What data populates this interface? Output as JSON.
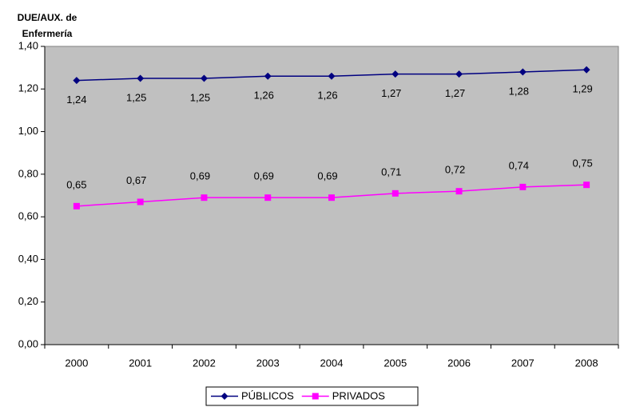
{
  "chart_data": {
    "type": "line",
    "title": "DUE/AUX. de Enfermería",
    "categories": [
      "2000",
      "2001",
      "2002",
      "2003",
      "2004",
      "2005",
      "2006",
      "2007",
      "2008"
    ],
    "series": [
      {
        "name": "PÚBLICOS",
        "color": "#000080",
        "marker": "diamond",
        "values": [
          1.24,
          1.25,
          1.25,
          1.26,
          1.26,
          1.27,
          1.27,
          1.28,
          1.29
        ],
        "value_labels": [
          "1,24",
          "1,25",
          "1,25",
          "1,26",
          "1,26",
          "1,27",
          "1,27",
          "1,28",
          "1,29"
        ]
      },
      {
        "name": "PRIVADOS",
        "color": "#ff00ff",
        "marker": "square",
        "values": [
          0.65,
          0.67,
          0.69,
          0.69,
          0.69,
          0.71,
          0.72,
          0.74,
          0.75
        ],
        "value_labels": [
          "0,65",
          "0,67",
          "0,69",
          "0,69",
          "0,69",
          "0,71",
          "0,72",
          "0,74",
          "0,75"
        ]
      }
    ],
    "ylim": [
      0,
      1.4
    ],
    "yticks": [
      {
        "value": 0,
        "label": "0,00"
      },
      {
        "value": 0.2,
        "label": "0,20"
      },
      {
        "value": 0.4,
        "label": "0,40"
      },
      {
        "value": 0.6,
        "label": "0,60"
      },
      {
        "value": 0.8,
        "label": "0,80"
      },
      {
        "value": 1.0,
        "label": "1,00"
      },
      {
        "value": 1.2,
        "label": "1,20"
      },
      {
        "value": 1.4,
        "label": "1,40"
      }
    ],
    "grid": false,
    "plot_background": "#c0c0c0",
    "legend": "bottom"
  }
}
